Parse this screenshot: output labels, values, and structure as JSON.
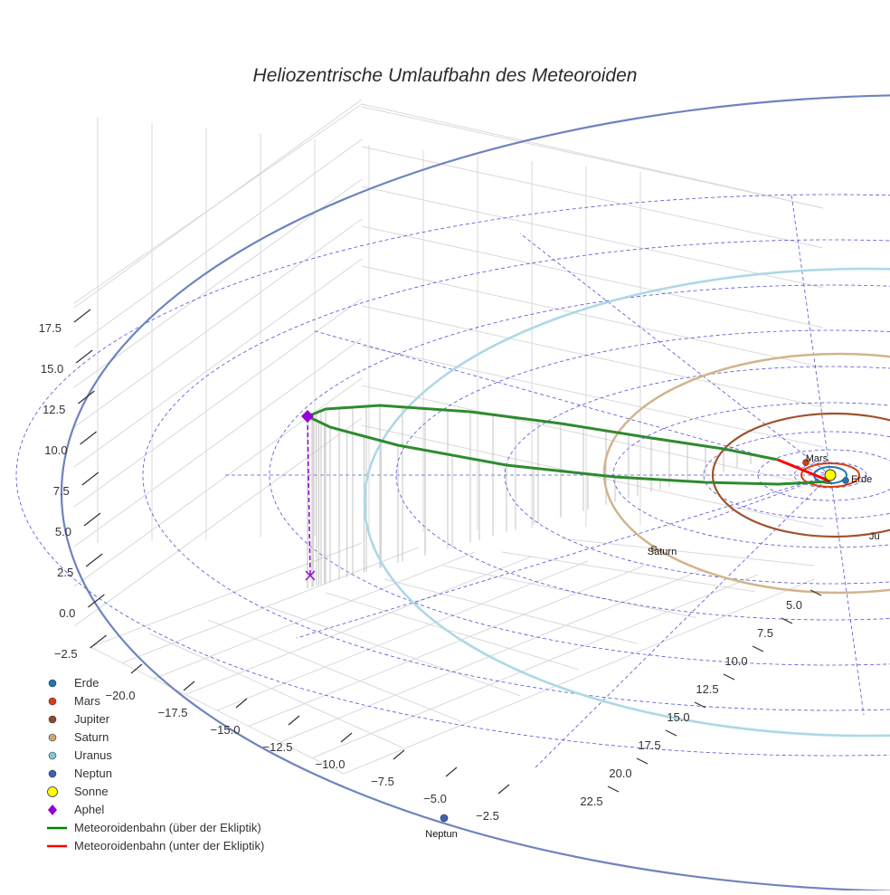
{
  "chart_data": {
    "type": "3d-scatter-line",
    "title": "Heliozentrische Umlaufbahn des Meteoroiden",
    "z_axis": {
      "ticks": [
        17.5,
        15.0,
        12.5,
        10.0,
        7.5,
        5.0,
        2.5,
        0.0,
        -2.5
      ]
    },
    "x_axis": {
      "ticks": [
        -20.0,
        -17.5,
        -15.0,
        -12.5,
        -10.0,
        -7.5,
        -5.0,
        -2.5
      ]
    },
    "y_axis": {
      "ticks": [
        5.0,
        7.5,
        10.0,
        12.5,
        15.0,
        17.5,
        20.0,
        22.5
      ]
    },
    "planet_labels": [
      "Mars",
      "Erde",
      "Ju",
      "Saturn",
      "Neptun"
    ],
    "legend": [
      {
        "label": "Erde",
        "color": "#1f77b4",
        "marker": "circle"
      },
      {
        "label": "Mars",
        "color": "#d6400f",
        "marker": "circle"
      },
      {
        "label": "Jupiter",
        "color": "#8b4a2b",
        "marker": "circle"
      },
      {
        "label": "Saturn",
        "color": "#c9a77c",
        "marker": "circle"
      },
      {
        "label": "Uranus",
        "color": "#7ec8d6",
        "marker": "circle"
      },
      {
        "label": "Neptun",
        "color": "#3f5fb0",
        "marker": "circle"
      },
      {
        "label": "Sonne",
        "color": "#ffff00",
        "marker": "circle-large"
      },
      {
        "label": "Aphel",
        "color": "#9400d3",
        "marker": "diamond"
      },
      {
        "label": "Meteoroidenbahn (über der Ekliptik)",
        "color": "#008000",
        "marker": "line"
      },
      {
        "label": "Meteoroidenbahn (unter der Ekliptik)",
        "color": "#ff0000",
        "marker": "line"
      }
    ],
    "orbit_colors": {
      "erde": "#1f77b4",
      "mars": "#d6400f",
      "jupiter": "#a0522d",
      "saturn": "#d2b48c",
      "uranus": "#add8e6",
      "neptun": "#6e83bf",
      "ecliptic_grid": "#3333cc"
    }
  }
}
